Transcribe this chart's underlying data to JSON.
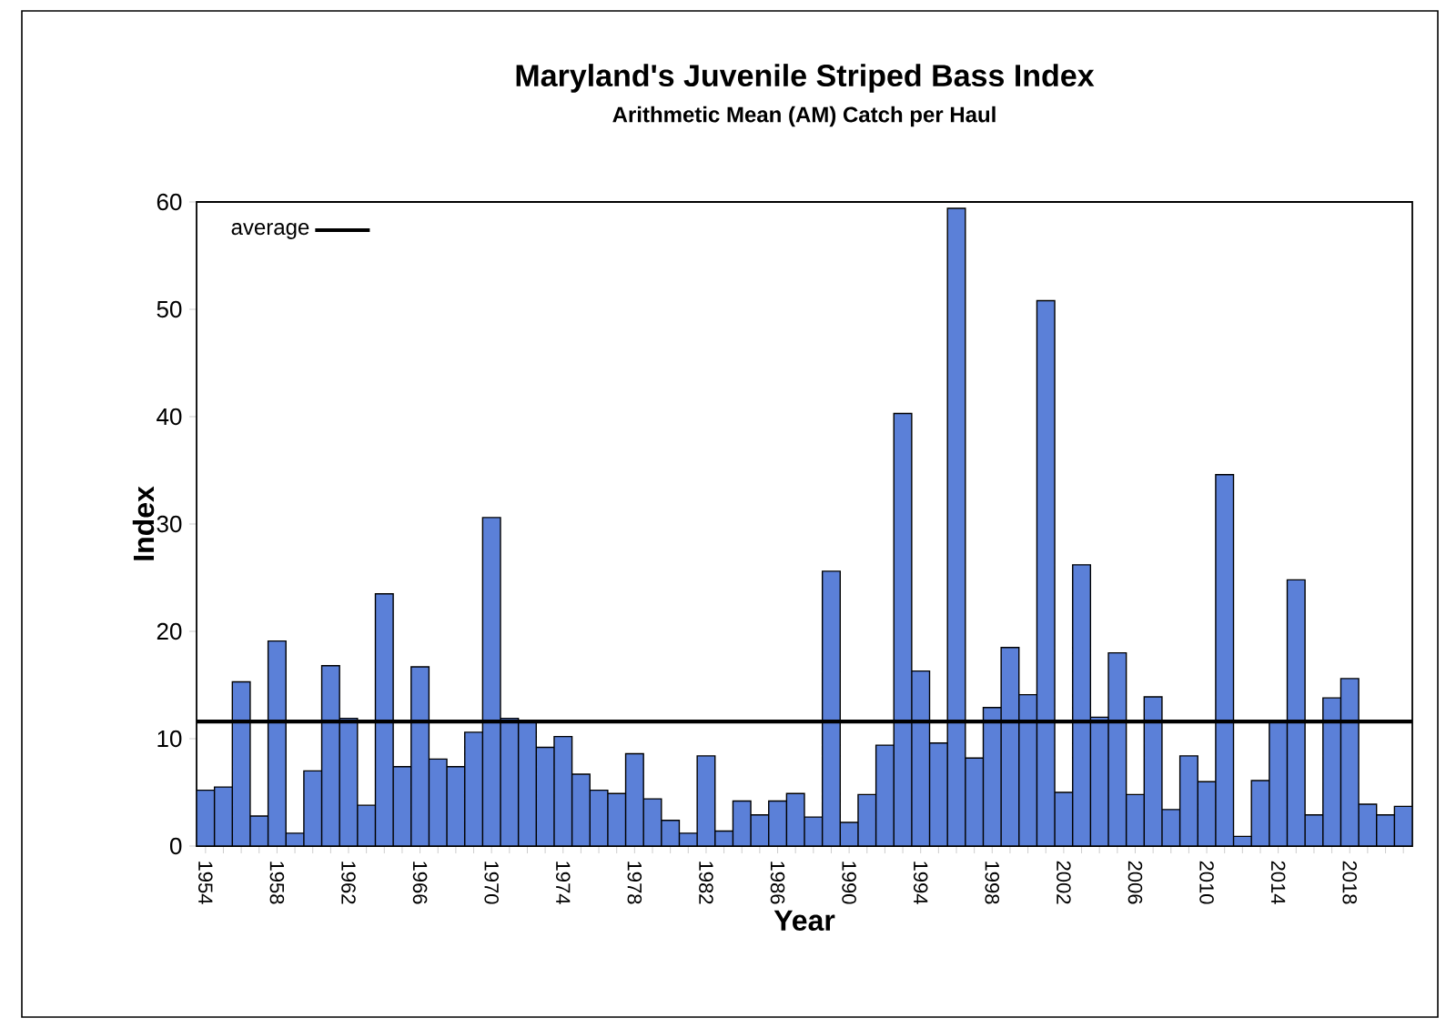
{
  "chart_data": {
    "type": "bar",
    "title": "Maryland's Juvenile Striped Bass Index",
    "subtitle": "Arithmetic Mean (AM) Catch per Haul",
    "xlabel": "Year",
    "ylabel": "Index",
    "categories": [
      "1954",
      null,
      null,
      null,
      "1958",
      null,
      null,
      null,
      "1962",
      null,
      null,
      null,
      "1966",
      null,
      null,
      null,
      "1970",
      null,
      null,
      null,
      "1974",
      null,
      null,
      null,
      "1978",
      null,
      null,
      null,
      "1982",
      null,
      null,
      null,
      "1986",
      null,
      null,
      null,
      "1990",
      null,
      null,
      null,
      "1994",
      null,
      null,
      null,
      "1998",
      null,
      null,
      null,
      "2002",
      null,
      null,
      null,
      "2006",
      null,
      null,
      null,
      "2010",
      null,
      null,
      null,
      "2014",
      null,
      null,
      null,
      "2018",
      null,
      null,
      null
    ],
    "values": [
      5.2,
      5.5,
      15.3,
      2.8,
      19.1,
      1.2,
      7.0,
      16.8,
      11.9,
      3.8,
      23.5,
      7.4,
      16.7,
      8.1,
      7.4,
      10.6,
      30.6,
      11.9,
      11.7,
      9.2,
      10.2,
      6.7,
      5.2,
      4.9,
      8.6,
      4.4,
      2.4,
      1.2,
      8.4,
      1.4,
      4.2,
      2.9,
      4.2,
      4.9,
      2.7,
      25.6,
      2.2,
      4.8,
      9.4,
      40.3,
      16.3,
      9.6,
      59.4,
      8.2,
      12.9,
      18.5,
      14.1,
      50.8,
      5.0,
      26.2,
      12.0,
      18.0,
      4.8,
      13.9,
      3.4,
      8.4,
      6.0,
      34.6,
      0.9,
      6.1,
      11.6,
      24.8,
      2.9,
      13.8,
      15.6,
      3.9,
      2.9,
      3.7
    ],
    "color": "#5b80d8",
    "ylim": [
      0,
      60
    ],
    "yticks": [
      0,
      10,
      20,
      30,
      40,
      50,
      60
    ],
    "ref_lines": [
      {
        "axis": "y",
        "value": 11.6,
        "label": "average",
        "color": "#000000"
      }
    ],
    "legend": "top left"
  }
}
